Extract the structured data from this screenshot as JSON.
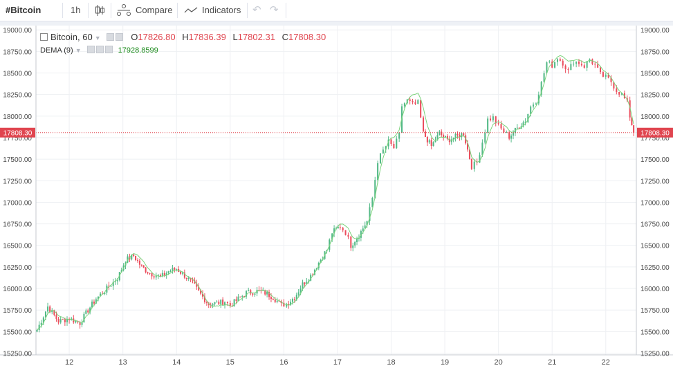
{
  "toolbar": {
    "symbol": "#Bitcoin",
    "interval": "1h",
    "compare_label": "Compare",
    "indicators_label": "Indicators",
    "icons": [
      "candles-icon",
      "compare-icon",
      "indicators-icon",
      "undo-icon",
      "redo-icon"
    ]
  },
  "legend": {
    "title": "Bitcoin, 60",
    "o_label": "O",
    "o": "17826.80",
    "h_label": "H",
    "h": "17836.39",
    "l_label": "L",
    "l": "17802.31",
    "c_label": "C",
    "c": "17808.30",
    "dema_label": "DEMA (9)",
    "dema_value": "17928.8599"
  },
  "colors": {
    "up": "#53b987",
    "down": "#eb4d5c",
    "dema": "#7cd37c",
    "price_line": "#e0454f",
    "grid": "#eef0f3"
  },
  "chart_data": {
    "type": "candlestick",
    "y_ticks": [
      "15250.00",
      "15500.00",
      "15750.00",
      "16000.00",
      "16250.00",
      "16500.00",
      "16750.00",
      "17000.00",
      "17250.00",
      "17500.00",
      "17750.00",
      "18000.00",
      "18250.00",
      "18500.00",
      "18750.00",
      "19000.00"
    ],
    "x_ticks": [
      "12",
      "13",
      "14",
      "15",
      "16",
      "17",
      "18",
      "19",
      "20",
      "21",
      "22"
    ],
    "ylim": [
      15230,
      19050
    ],
    "x_range_days": [
      11.38,
      22.57
    ],
    "last_price": "17808.30",
    "close_path": [
      [
        11.4,
        15520
      ],
      [
        11.6,
        15790
      ],
      [
        11.8,
        15620
      ],
      [
        12.0,
        15650
      ],
      [
        12.2,
        15600
      ],
      [
        12.35,
        15750
      ],
      [
        12.5,
        15880
      ],
      [
        12.7,
        16000
      ],
      [
        12.9,
        16120
      ],
      [
        13.05,
        16330
      ],
      [
        13.2,
        16380
      ],
      [
        13.35,
        16250
      ],
      [
        13.5,
        16180
      ],
      [
        13.7,
        16130
      ],
      [
        13.85,
        16200
      ],
      [
        14.0,
        16230
      ],
      [
        14.15,
        16150
      ],
      [
        14.3,
        16060
      ],
      [
        14.45,
        15930
      ],
      [
        14.6,
        15820
      ],
      [
        14.75,
        15830
      ],
      [
        14.9,
        15850
      ],
      [
        15.0,
        15800
      ],
      [
        15.15,
        15880
      ],
      [
        15.3,
        15950
      ],
      [
        15.5,
        15970
      ],
      [
        15.65,
        15950
      ],
      [
        15.8,
        15900
      ],
      [
        15.95,
        15810
      ],
      [
        16.05,
        15820
      ],
      [
        16.2,
        15900
      ],
      [
        16.35,
        16050
      ],
      [
        16.5,
        16150
      ],
      [
        16.65,
        16300
      ],
      [
        16.8,
        16450
      ],
      [
        16.9,
        16650
      ],
      [
        17.05,
        16720
      ],
      [
        17.15,
        16650
      ],
      [
        17.25,
        16500
      ],
      [
        17.4,
        16620
      ],
      [
        17.55,
        16780
      ],
      [
        17.65,
        17050
      ],
      [
        17.75,
        17480
      ],
      [
        17.85,
        17600
      ],
      [
        17.95,
        17700
      ],
      [
        18.05,
        17630
      ],
      [
        18.15,
        17780
      ],
      [
        18.2,
        18120
      ],
      [
        18.3,
        18180
      ],
      [
        18.4,
        18130
      ],
      [
        18.5,
        18150
      ],
      [
        18.6,
        17800
      ],
      [
        18.75,
        17650
      ],
      [
        18.9,
        17800
      ],
      [
        19.05,
        17720
      ],
      [
        19.2,
        17760
      ],
      [
        19.35,
        17800
      ],
      [
        19.5,
        17420
      ],
      [
        19.6,
        17460
      ],
      [
        19.7,
        17700
      ],
      [
        19.8,
        17960
      ],
      [
        19.9,
        17980
      ],
      [
        20.0,
        17880
      ],
      [
        20.1,
        17820
      ],
      [
        20.2,
        17760
      ],
      [
        20.35,
        17860
      ],
      [
        20.5,
        17950
      ],
      [
        20.6,
        18110
      ],
      [
        20.7,
        18180
      ],
      [
        20.8,
        18380
      ],
      [
        20.9,
        18620
      ],
      [
        21.0,
        18590
      ],
      [
        21.1,
        18680
      ],
      [
        21.2,
        18620
      ],
      [
        21.3,
        18520
      ],
      [
        21.4,
        18640
      ],
      [
        21.5,
        18620
      ],
      [
        21.6,
        18580
      ],
      [
        21.7,
        18660
      ],
      [
        21.8,
        18590
      ],
      [
        21.9,
        18480
      ],
      [
        22.0,
        18450
      ],
      [
        22.1,
        18400
      ],
      [
        22.2,
        18300
      ],
      [
        22.3,
        18250
      ],
      [
        22.4,
        18150
      ],
      [
        22.45,
        18000
      ],
      [
        22.52,
        17808
      ]
    ]
  }
}
